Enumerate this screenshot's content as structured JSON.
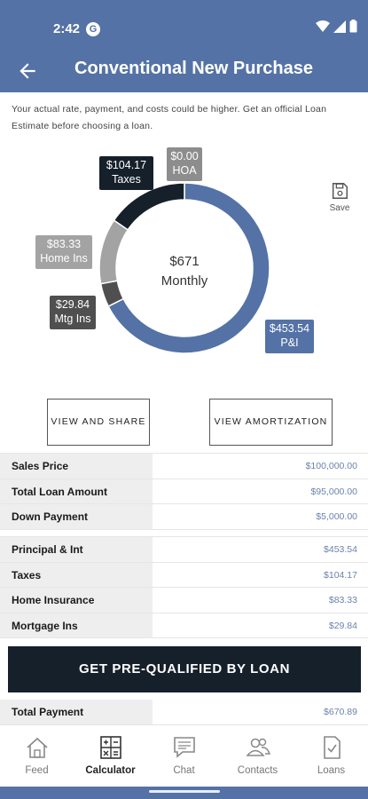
{
  "status": {
    "time": "2:42",
    "app_badge": "G"
  },
  "header": {
    "title": "Conventional New Purchase"
  },
  "disclaimer": "Your actual rate, payment, and costs could be higher. Get an official Loan Estimate before choosing a loan.",
  "chart_data": {
    "type": "pie",
    "center_value": "$671",
    "center_label": "Monthly",
    "slices": [
      {
        "name": "P&I",
        "value": 453.54,
        "label": "$453.54",
        "color": "#5472a6"
      },
      {
        "name": "Mtg Ins",
        "value": 29.84,
        "label": "$29.84",
        "color": "#4f4f4f"
      },
      {
        "name": "Home Ins",
        "value": 83.33,
        "label": "$83.33",
        "color": "#a3a3a3"
      },
      {
        "name": "Taxes",
        "value": 104.17,
        "label": "$104.17",
        "color": "#16202b"
      },
      {
        "name": "HOA",
        "value": 0.0,
        "label": "$0.00",
        "color": "#8d8d8d"
      }
    ]
  },
  "save_label": "Save",
  "buttons": {
    "share": "VIEW AND SHARE",
    "amortization": "VIEW AMORTIZATION",
    "cta": "GET PRE-QUALIFIED BY LOAN"
  },
  "loan_rows": [
    {
      "label": "Sales Price",
      "value": "$100,000.00"
    },
    {
      "label": "Total Loan Amount",
      "value": "$95,000.00"
    },
    {
      "label": "Down Payment",
      "value": "$5,000.00"
    }
  ],
  "payment_rows": [
    {
      "label": "Principal & Int",
      "value": "$453.54"
    },
    {
      "label": "Taxes",
      "value": "$104.17"
    },
    {
      "label": "Home Insurance",
      "value": "$83.33"
    },
    {
      "label": "Mortgage Ins",
      "value": "$29.84"
    }
  ],
  "total_row": {
    "label": "Total Payment",
    "value": "$670.89"
  },
  "nav": [
    {
      "label": "Feed",
      "icon": "home-icon"
    },
    {
      "label": "Calculator",
      "icon": "calculator-icon"
    },
    {
      "label": "Chat",
      "icon": "chat-icon"
    },
    {
      "label": "Contacts",
      "icon": "contacts-icon"
    },
    {
      "label": "Loans",
      "icon": "document-check-icon"
    }
  ],
  "colors": {
    "primary": "#5472a6",
    "dark": "#16202b"
  }
}
